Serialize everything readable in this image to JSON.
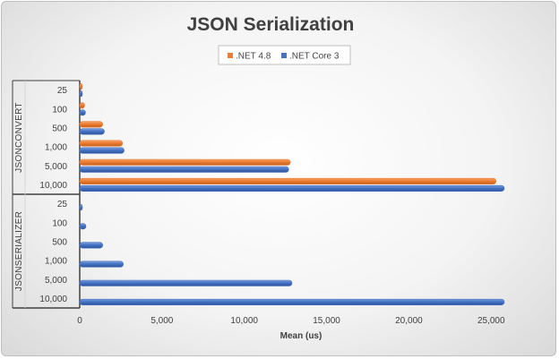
{
  "chart_data": {
    "type": "bar",
    "orientation": "horizontal",
    "title": "JSON Serialization",
    "xlabel": "Mean (us)",
    "ylabel": "",
    "xlim": [
      0,
      27000
    ],
    "xticks": [
      0,
      5000,
      10000,
      15000,
      20000,
      25000
    ],
    "xtick_labels": [
      "0",
      "5,000",
      "10,000",
      "15,000",
      "20,000",
      "25,000"
    ],
    "groups": [
      {
        "name": "JSONCONVERT",
        "categories": [
          "25",
          "100",
          "500",
          "1,000",
          "5,000",
          "10,000"
        ]
      },
      {
        "name": "JSONSERIALIZER",
        "categories": [
          "25",
          "100",
          "500",
          "1,000",
          "5,000",
          "10,000"
        ]
      }
    ],
    "series": [
      {
        "name": ".NET 4.8",
        "color": "#ed7d31",
        "values": [
          [
            120,
            300,
            1400,
            2600,
            12800,
            25300
          ],
          [
            null,
            null,
            null,
            null,
            null,
            null
          ]
        ]
      },
      {
        "name": ".NET Core 3",
        "color": "#4472c4",
        "values": [
          [
            150,
            350,
            1500,
            2700,
            12700,
            25800
          ],
          [
            100,
            380,
            1400,
            2650,
            12900,
            25800
          ]
        ]
      }
    ],
    "legend_position": "top"
  }
}
